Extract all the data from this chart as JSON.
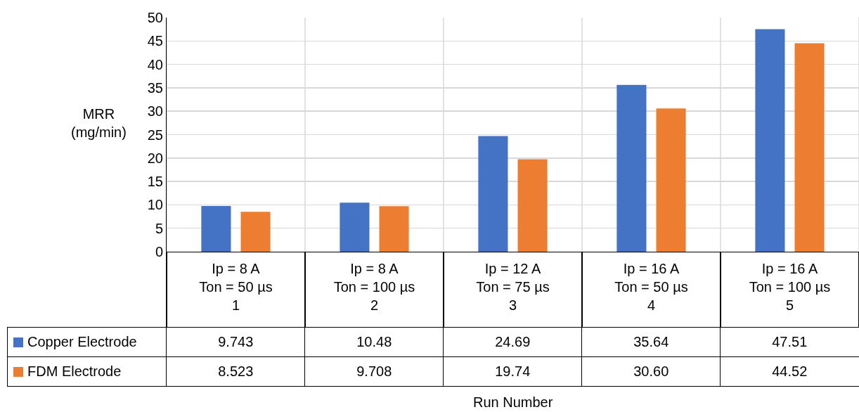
{
  "chart_data": {
    "type": "bar",
    "annotations": [
      "Run Number"
    ],
    "ylabel": "MRR\n(mg/min)",
    "categories": [
      "Ip = 8 A\nTon = 50 µs\n1",
      "Ip = 8 A\nTon = 100 µs\n2",
      "Ip = 12 A\nTon = 75 µs\n3",
      "Ip = 16 A\nTon = 50 µs\n4",
      "Ip = 16 A\nTon = 100 µs\n5"
    ],
    "series": [
      {
        "name": "Copper Electrode",
        "color": "#4472c4",
        "values": [
          9.743,
          10.48,
          24.69,
          35.64,
          47.51
        ],
        "value_labels": [
          "9.743",
          "10.48",
          "24.69",
          "35.64",
          "47.51"
        ]
      },
      {
        "name": "FDM Electrode",
        "color": "#ed7d31",
        "values": [
          8.523,
          9.708,
          19.74,
          30.6,
          44.52
        ],
        "value_labels": [
          "8.523",
          "9.708",
          "19.74",
          "30.60",
          "44.52"
        ]
      }
    ],
    "ylim": [
      0,
      50
    ],
    "yticks": [
      0,
      5,
      10,
      15,
      20,
      25,
      30,
      35,
      40,
      45,
      50
    ],
    "grid": true,
    "legend": "bottom left"
  }
}
